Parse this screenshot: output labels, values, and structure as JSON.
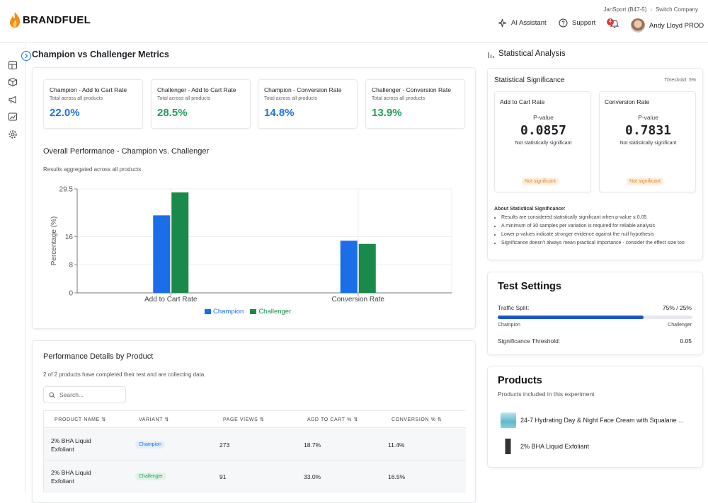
{
  "brand": {
    "name": "BRANDFUEL"
  },
  "breadcrumb": {
    "company": "JanSport (B47-5)",
    "switch": "Switch Company"
  },
  "topnav": {
    "ai": "AI Assistant",
    "support": "Support",
    "notif_count": "4",
    "user": "Andy Lloyd PROD"
  },
  "main": {
    "title": "Champion vs Challenger Metrics"
  },
  "metrics": [
    {
      "title": "Champion - Add to Cart Rate",
      "sub": "Total across all products",
      "value": "22.0%",
      "color": "#1a73e8"
    },
    {
      "title": "Challenger - Add to Cart Rate",
      "sub": "Total across all products",
      "value": "28.5%",
      "color": "#1e9e5a"
    },
    {
      "title": "Champion - Conversion Rate",
      "sub": "Total across all products",
      "value": "14.8%",
      "color": "#1a73e8"
    },
    {
      "title": "Challenger - Conversion Rate",
      "sub": "Total across all products",
      "value": "13.9%",
      "color": "#1e9e5a"
    }
  ],
  "overall": {
    "title": "Overall Performance - Champion vs. Challenger",
    "sub": "Results aggregated across all products"
  },
  "chart_data": {
    "type": "bar",
    "categories": [
      "Add to Cart Rate",
      "Conversion Rate"
    ],
    "series": [
      {
        "name": "Champion",
        "values": [
          22.0,
          14.8
        ],
        "color": "#1a6ee8"
      },
      {
        "name": "Challenger",
        "values": [
          28.5,
          13.9
        ],
        "color": "#1a8a4a"
      }
    ],
    "ylabel": "Percentage (%)",
    "ylim": [
      0,
      29.5
    ],
    "yticks": [
      "0",
      "8",
      "16",
      "29.5"
    ],
    "legend": "bottom",
    "grid": true
  },
  "details": {
    "title": "Performance Details by Product",
    "sub": "2 of 2 products have completed their test and are collecting data.",
    "search_placeholder": "Search...",
    "columns": [
      "PRODUCT NAME",
      "VARIANT",
      "PAGE VIEWS",
      "ADD TO CART %",
      "CONVERSION %"
    ],
    "rows": [
      {
        "name_l1": "2% BHA Liquid",
        "name_l2": "Exfoliant",
        "variant": "Champion",
        "views": "273",
        "atc": "18.7%",
        "conv": "11.4%"
      },
      {
        "name_l1": "2% BHA Liquid",
        "name_l2": "Exfoliant",
        "variant": "Challenger",
        "views": "91",
        "atc": "33.0%",
        "conv": "16.5%"
      }
    ]
  },
  "stat": {
    "title": "Statistical Analysis",
    "sig_title": "Statistical Significance",
    "threshold": "Threshold: 5%",
    "boxes": [
      {
        "title": "Add to Cart Rate",
        "plabel": "P-value",
        "pvalue": "0.0857",
        "note": "Not statistically significant",
        "badge": "Not significant"
      },
      {
        "title": "Conversion Rate",
        "plabel": "P-value",
        "pvalue": "0.7831",
        "note": "Not statistically significant",
        "badge": "Not significant"
      }
    ],
    "about_title": "About Statistical Significance:",
    "about_items": [
      "Results are considered statistically significant when p-value ≤ 0.05",
      "A minimum of 30 samples per variation is required for reliable analysis",
      "Lower p-values indicate stronger evidence against the null hypothesis",
      "Significance doesn't always mean practical importance - consider the effect size too"
    ]
  },
  "settings": {
    "title": "Test Settings",
    "split_label": "Traffic Split:",
    "split_value": "75% / 25%",
    "champion_share": 0.75,
    "left_label": "Champion",
    "right_label": "Challenger",
    "threshold_label": "Significance Threshold:",
    "threshold_value": "0.05"
  },
  "products": {
    "title": "Products",
    "sub": "Products included in this experiment",
    "items": [
      {
        "name": "24-7 Hydrating Day & Night Face Cream with Squalane ..."
      },
      {
        "name": "2% BHA Liquid Exfoliant"
      }
    ]
  }
}
